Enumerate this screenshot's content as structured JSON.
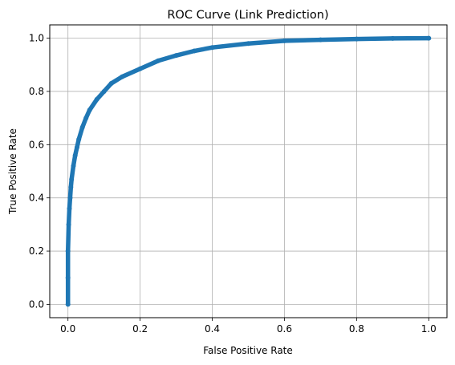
{
  "chart_data": {
    "type": "line",
    "title": "ROC Curve (Link Prediction)",
    "xlabel": "False Positive Rate",
    "ylabel": "True Positive Rate",
    "xlim": [
      -0.0505,
      1.0505
    ],
    "ylim": [
      -0.05,
      1.05
    ],
    "xticks": [
      0.0,
      0.2,
      0.4,
      0.6,
      0.8,
      1.0
    ],
    "yticks": [
      0.0,
      0.2,
      0.4,
      0.6,
      0.8,
      1.0
    ],
    "xtick_labels": [
      "0.0",
      "0.2",
      "0.4",
      "0.6",
      "0.8",
      "1.0"
    ],
    "ytick_labels": [
      "0.0",
      "0.2",
      "0.4",
      "0.6",
      "0.8",
      "1.0"
    ],
    "grid": true,
    "marker": "dot",
    "colors": {
      "line": "#1f77b4",
      "grid": "#b0b0b0",
      "axes": "#000000"
    },
    "series": [
      {
        "x": [
          0.0,
          0.0,
          0.0,
          0.002,
          0.004,
          0.006,
          0.008,
          0.01,
          0.015,
          0.02,
          0.025,
          0.03,
          0.04,
          0.05,
          0.06,
          0.08,
          0.1,
          0.12,
          0.15,
          0.2,
          0.25,
          0.3,
          0.35,
          0.4,
          0.5,
          0.6,
          0.7,
          0.8,
          0.9,
          1.0
        ],
        "y": [
          0.0,
          0.1,
          0.2,
          0.3,
          0.36,
          0.4,
          0.44,
          0.47,
          0.52,
          0.56,
          0.59,
          0.62,
          0.665,
          0.7,
          0.73,
          0.77,
          0.8,
          0.83,
          0.855,
          0.885,
          0.915,
          0.935,
          0.952,
          0.965,
          0.98,
          0.99,
          0.994,
          0.997,
          0.999,
          1.0
        ]
      }
    ]
  }
}
